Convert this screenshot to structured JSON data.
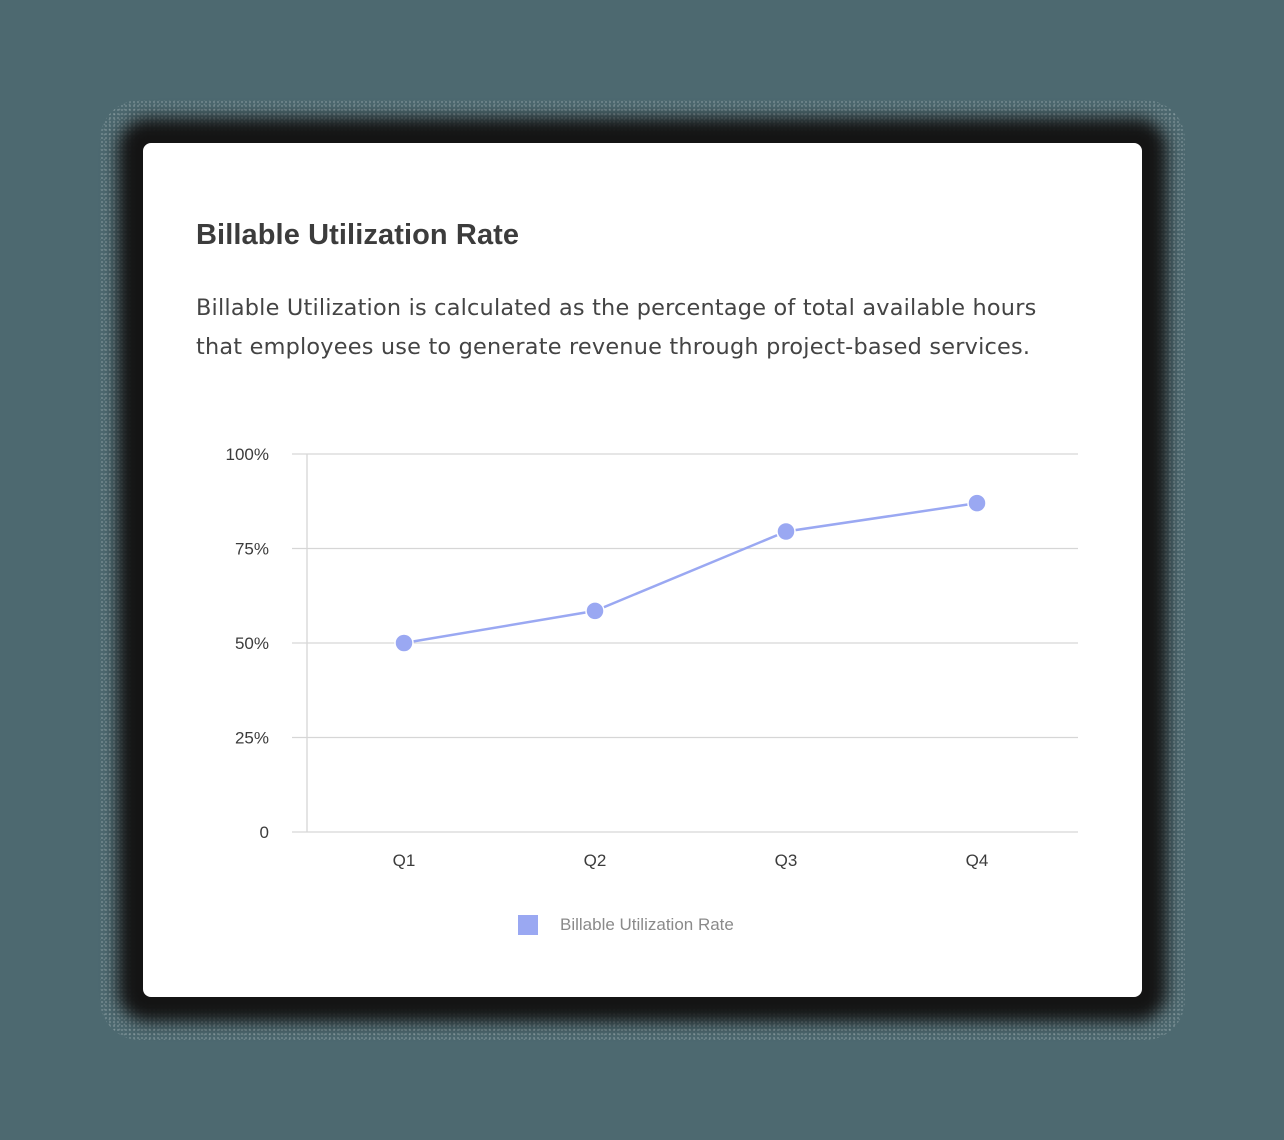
{
  "card": {
    "title": "Billable Utilization Rate",
    "description_lines": [
      "Billable Utilization is calculated as the percentage of total available hours",
      "that employees use to generate revenue through project-based services."
    ]
  },
  "colors": {
    "background": "#4d6970",
    "card": "#ffffff",
    "series": "#9aa8f2",
    "gridline": "#d6d6d6",
    "text": "#3c3c3c"
  },
  "legend": {
    "items": [
      {
        "label": "Billable Utilization Rate",
        "color": "#9aa8f2"
      }
    ]
  },
  "chart_data": {
    "type": "line",
    "title": "Billable Utilization Rate",
    "xlabel": "",
    "ylabel": "",
    "categories": [
      "Q1",
      "Q2",
      "Q3",
      "Q4"
    ],
    "series": [
      {
        "name": "Billable Utilization Rate",
        "values": [
          50,
          58.5,
          79.5,
          87
        ],
        "color": "#9aa8f2"
      }
    ],
    "yticks": [
      0,
      25,
      50,
      75,
      100
    ],
    "ytick_labels": [
      "0",
      "25%",
      "50%",
      "75%",
      "100%"
    ],
    "ylim": [
      0,
      100
    ],
    "grid": true,
    "legend_position": "bottom"
  }
}
